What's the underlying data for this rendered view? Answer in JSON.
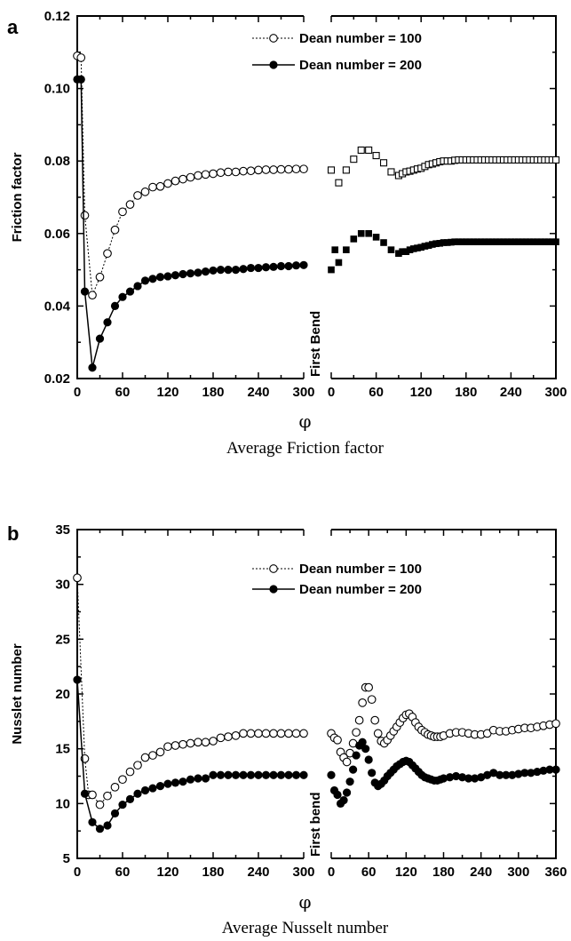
{
  "chart_data": [
    {
      "type": "line",
      "panel": "a",
      "caption": "Average Friction factor",
      "xlabel": "φ",
      "ylabel": "Friction factor",
      "ylim": [
        0.02,
        0.12
      ],
      "yticks": [
        "0.02",
        "0.04",
        "0.06",
        "0.08",
        "0.10",
        "0.12"
      ],
      "segment_label": "First Bend",
      "legend_position": "top-center",
      "left": {
        "xlim": [
          0,
          300
        ],
        "xticks": [
          "0",
          "60",
          "120",
          "180",
          "240",
          "300"
        ],
        "series": [
          {
            "name": "Dean number = 100",
            "marker": "open-circle",
            "line": "dotted",
            "x": [
              0,
              5,
              10,
              20,
              30,
              40,
              50,
              60,
              70,
              80,
              90,
              100,
              110,
              120,
              130,
              140,
              150,
              160,
              170,
              180,
              190,
              200,
              210,
              220,
              230,
              240,
              250,
              260,
              270,
              280,
              290,
              300
            ],
            "y": [
              0.109,
              0.1085,
              0.065,
              0.043,
              0.048,
              0.0545,
              0.061,
              0.066,
              0.068,
              0.0705,
              0.0715,
              0.0728,
              0.073,
              0.0738,
              0.0745,
              0.075,
              0.0755,
              0.076,
              0.0763,
              0.0765,
              0.0768,
              0.077,
              0.077,
              0.0772,
              0.0773,
              0.0775,
              0.0776,
              0.0776,
              0.0777,
              0.0777,
              0.0778,
              0.0778
            ]
          },
          {
            "name": "Dean number = 200",
            "marker": "filled-circle",
            "line": "solid",
            "x": [
              0,
              5,
              10,
              20,
              30,
              40,
              50,
              60,
              70,
              80,
              90,
              100,
              110,
              120,
              130,
              140,
              150,
              160,
              170,
              180,
              190,
              200,
              210,
              220,
              230,
              240,
              250,
              260,
              270,
              280,
              290,
              300
            ],
            "y": [
              0.1025,
              0.1025,
              0.044,
              0.023,
              0.031,
              0.0355,
              0.04,
              0.0425,
              0.044,
              0.0455,
              0.047,
              0.0475,
              0.048,
              0.0482,
              0.0485,
              0.0488,
              0.049,
              0.0492,
              0.0495,
              0.0498,
              0.05,
              0.05,
              0.05,
              0.0502,
              0.0505,
              0.0505,
              0.0507,
              0.0508,
              0.051,
              0.051,
              0.0512,
              0.0513
            ]
          }
        ]
      },
      "right": {
        "xlim": [
          0,
          300
        ],
        "xticks": [
          "0",
          "60",
          "120",
          "180",
          "240",
          "300"
        ],
        "series": [
          {
            "name": "Dean number = 100",
            "marker": "open-square",
            "x": [
              0,
              10,
              20,
              30,
              40,
              50,
              60,
              70,
              80,
              90,
              95,
              100,
              105,
              110,
              115,
              120,
              125,
              130,
              135,
              140,
              145,
              150,
              155,
              160,
              165,
              170,
              175,
              180,
              185,
              190,
              195,
              200,
              205,
              210,
              215,
              220,
              225,
              230,
              235,
              240,
              245,
              250,
              255,
              260,
              265,
              270,
              275,
              280,
              285,
              290,
              295,
              300
            ],
            "y": [
              0.0775,
              0.074,
              0.0775,
              0.0805,
              0.083,
              0.083,
              0.0815,
              0.0795,
              0.077,
              0.076,
              0.0765,
              0.077,
              0.0772,
              0.0775,
              0.0778,
              0.078,
              0.0785,
              0.079,
              0.0792,
              0.0795,
              0.0798,
              0.08,
              0.08,
              0.08,
              0.0802,
              0.0803,
              0.0803,
              0.0803,
              0.0803,
              0.0803,
              0.0803,
              0.0803,
              0.0803,
              0.0803,
              0.0803,
              0.0803,
              0.0803,
              0.0803,
              0.0803,
              0.0803,
              0.0803,
              0.0803,
              0.0803,
              0.0803,
              0.0803,
              0.0803,
              0.0803,
              0.0803,
              0.0803,
              0.0803,
              0.0803,
              0.0803
            ]
          },
          {
            "name": "Dean number = 200",
            "marker": "filled-square",
            "x": [
              0,
              5,
              10,
              20,
              30,
              40,
              50,
              60,
              70,
              80,
              90,
              95,
              100,
              105,
              110,
              115,
              120,
              125,
              130,
              135,
              140,
              145,
              150,
              155,
              160,
              165,
              170,
              175,
              180,
              185,
              190,
              195,
              200,
              205,
              210,
              215,
              220,
              225,
              230,
              235,
              240,
              245,
              250,
              255,
              260,
              265,
              270,
              275,
              280,
              285,
              290,
              295,
              300
            ],
            "y": [
              0.05,
              0.0555,
              0.052,
              0.0555,
              0.0585,
              0.06,
              0.06,
              0.059,
              0.0575,
              0.0555,
              0.0545,
              0.055,
              0.055,
              0.0555,
              0.0558,
              0.056,
              0.0562,
              0.0565,
              0.0567,
              0.057,
              0.0572,
              0.0573,
              0.0575,
              0.0575,
              0.0576,
              0.0577,
              0.0577,
              0.0577,
              0.0577,
              0.0577,
              0.0577,
              0.0577,
              0.0577,
              0.0577,
              0.0577,
              0.0577,
              0.0577,
              0.0577,
              0.0577,
              0.0577,
              0.0577,
              0.0577,
              0.0577,
              0.0577,
              0.0577,
              0.0577,
              0.0577,
              0.0577,
              0.0577,
              0.0577,
              0.0577,
              0.0577,
              0.0577
            ]
          }
        ]
      }
    },
    {
      "type": "line",
      "panel": "b",
      "caption": "Average Nusselt number",
      "xlabel": "φ",
      "ylabel": "Nusslet number",
      "ylim": [
        5,
        35
      ],
      "yticks": [
        "5",
        "10",
        "15",
        "20",
        "25",
        "30",
        "35"
      ],
      "segment_label": "First bend",
      "legend_position": "top-center",
      "left": {
        "xlim": [
          0,
          300
        ],
        "xticks": [
          "0",
          "60",
          "120",
          "180",
          "240",
          "300"
        ],
        "series": [
          {
            "name": "Dean number = 100",
            "marker": "open-circle",
            "line": "dotted",
            "x": [
              0,
              10,
              15,
              20,
              30,
              40,
              50,
              60,
              70,
              80,
              90,
              100,
              110,
              120,
              130,
              140,
              150,
              160,
              170,
              180,
              190,
              200,
              210,
              220,
              230,
              240,
              250,
              260,
              270,
              280,
              290,
              300
            ],
            "y": [
              30.6,
              14.1,
              10.8,
              10.8,
              9.9,
              10.7,
              11.5,
              12.2,
              12.9,
              13.5,
              14.2,
              14.4,
              14.7,
              15.2,
              15.3,
              15.4,
              15.5,
              15.6,
              15.6,
              15.7,
              16.0,
              16.1,
              16.2,
              16.4,
              16.4,
              16.4,
              16.4,
              16.4,
              16.4,
              16.4,
              16.4,
              16.4
            ]
          },
          {
            "name": "Dean number = 200",
            "marker": "filled-circle",
            "line": "solid",
            "x": [
              0,
              10,
              20,
              30,
              40,
              50,
              60,
              70,
              80,
              90,
              100,
              110,
              120,
              130,
              140,
              150,
              160,
              170,
              180,
              190,
              200,
              210,
              220,
              230,
              240,
              250,
              260,
              270,
              280,
              290,
              300
            ],
            "y": [
              21.3,
              10.9,
              8.3,
              7.7,
              8.0,
              9.1,
              9.9,
              10.4,
              10.9,
              11.2,
              11.4,
              11.6,
              11.8,
              11.9,
              12.0,
              12.2,
              12.3,
              12.3,
              12.6,
              12.6,
              12.6,
              12.6,
              12.6,
              12.6,
              12.6,
              12.6,
              12.6,
              12.6,
              12.6,
              12.6,
              12.6
            ]
          }
        ]
      },
      "right": {
        "xlim": [
          0,
          360
        ],
        "xticks": [
          "0",
          "60",
          "120",
          "180",
          "240",
          "300",
          "360"
        ],
        "series": [
          {
            "name": "Dean number = 100",
            "marker": "open-circle",
            "x": [
              0,
              5,
              10,
              15,
              20,
              25,
              30,
              35,
              40,
              45,
              50,
              55,
              60,
              65,
              70,
              75,
              80,
              85,
              90,
              95,
              100,
              105,
              110,
              115,
              120,
              125,
              130,
              135,
              140,
              145,
              150,
              155,
              160,
              165,
              170,
              175,
              180,
              190,
              200,
              210,
              220,
              230,
              240,
              250,
              260,
              270,
              280,
              290,
              300,
              310,
              320,
              330,
              340,
              350,
              360
            ],
            "y": [
              16.4,
              16.0,
              15.8,
              14.7,
              14.2,
              13.8,
              14.6,
              15.5,
              16.5,
              17.6,
              19.2,
              20.6,
              20.6,
              19.5,
              17.6,
              16.4,
              15.7,
              15.5,
              15.8,
              16.2,
              16.6,
              17.0,
              17.4,
              17.8,
              18.1,
              18.2,
              17.9,
              17.4,
              17.0,
              16.7,
              16.5,
              16.3,
              16.2,
              16.1,
              16.1,
              16.1,
              16.2,
              16.4,
              16.5,
              16.5,
              16.4,
              16.3,
              16.3,
              16.4,
              16.7,
              16.6,
              16.6,
              16.7,
              16.8,
              16.9,
              16.9,
              17.0,
              17.1,
              17.2,
              17.3
            ]
          },
          {
            "name": "Dean number = 200",
            "marker": "filled-circle",
            "x": [
              0,
              5,
              10,
              15,
              20,
              25,
              30,
              35,
              40,
              45,
              50,
              55,
              60,
              65,
              70,
              75,
              80,
              85,
              90,
              95,
              100,
              105,
              110,
              115,
              120,
              125,
              130,
              135,
              140,
              145,
              150,
              155,
              160,
              165,
              170,
              175,
              180,
              190,
              200,
              210,
              220,
              230,
              240,
              250,
              260,
              270,
              280,
              290,
              300,
              310,
              320,
              330,
              340,
              350,
              360
            ],
            "y": [
              12.6,
              11.2,
              10.8,
              10.0,
              10.3,
              11.0,
              12.0,
              13.1,
              14.4,
              15.3,
              15.6,
              15.0,
              14.0,
              12.8,
              11.9,
              11.6,
              11.8,
              12.1,
              12.5,
              12.8,
              13.1,
              13.4,
              13.6,
              13.8,
              13.9,
              13.8,
              13.5,
              13.2,
              12.9,
              12.6,
              12.4,
              12.3,
              12.2,
              12.1,
              12.1,
              12.2,
              12.3,
              12.4,
              12.5,
              12.4,
              12.3,
              12.3,
              12.4,
              12.6,
              12.8,
              12.6,
              12.6,
              12.6,
              12.7,
              12.8,
              12.8,
              12.9,
              13.0,
              13.1,
              13.1
            ]
          }
        ]
      }
    }
  ],
  "colors": {
    "ink": "#000000",
    "background": "#ffffff"
  }
}
